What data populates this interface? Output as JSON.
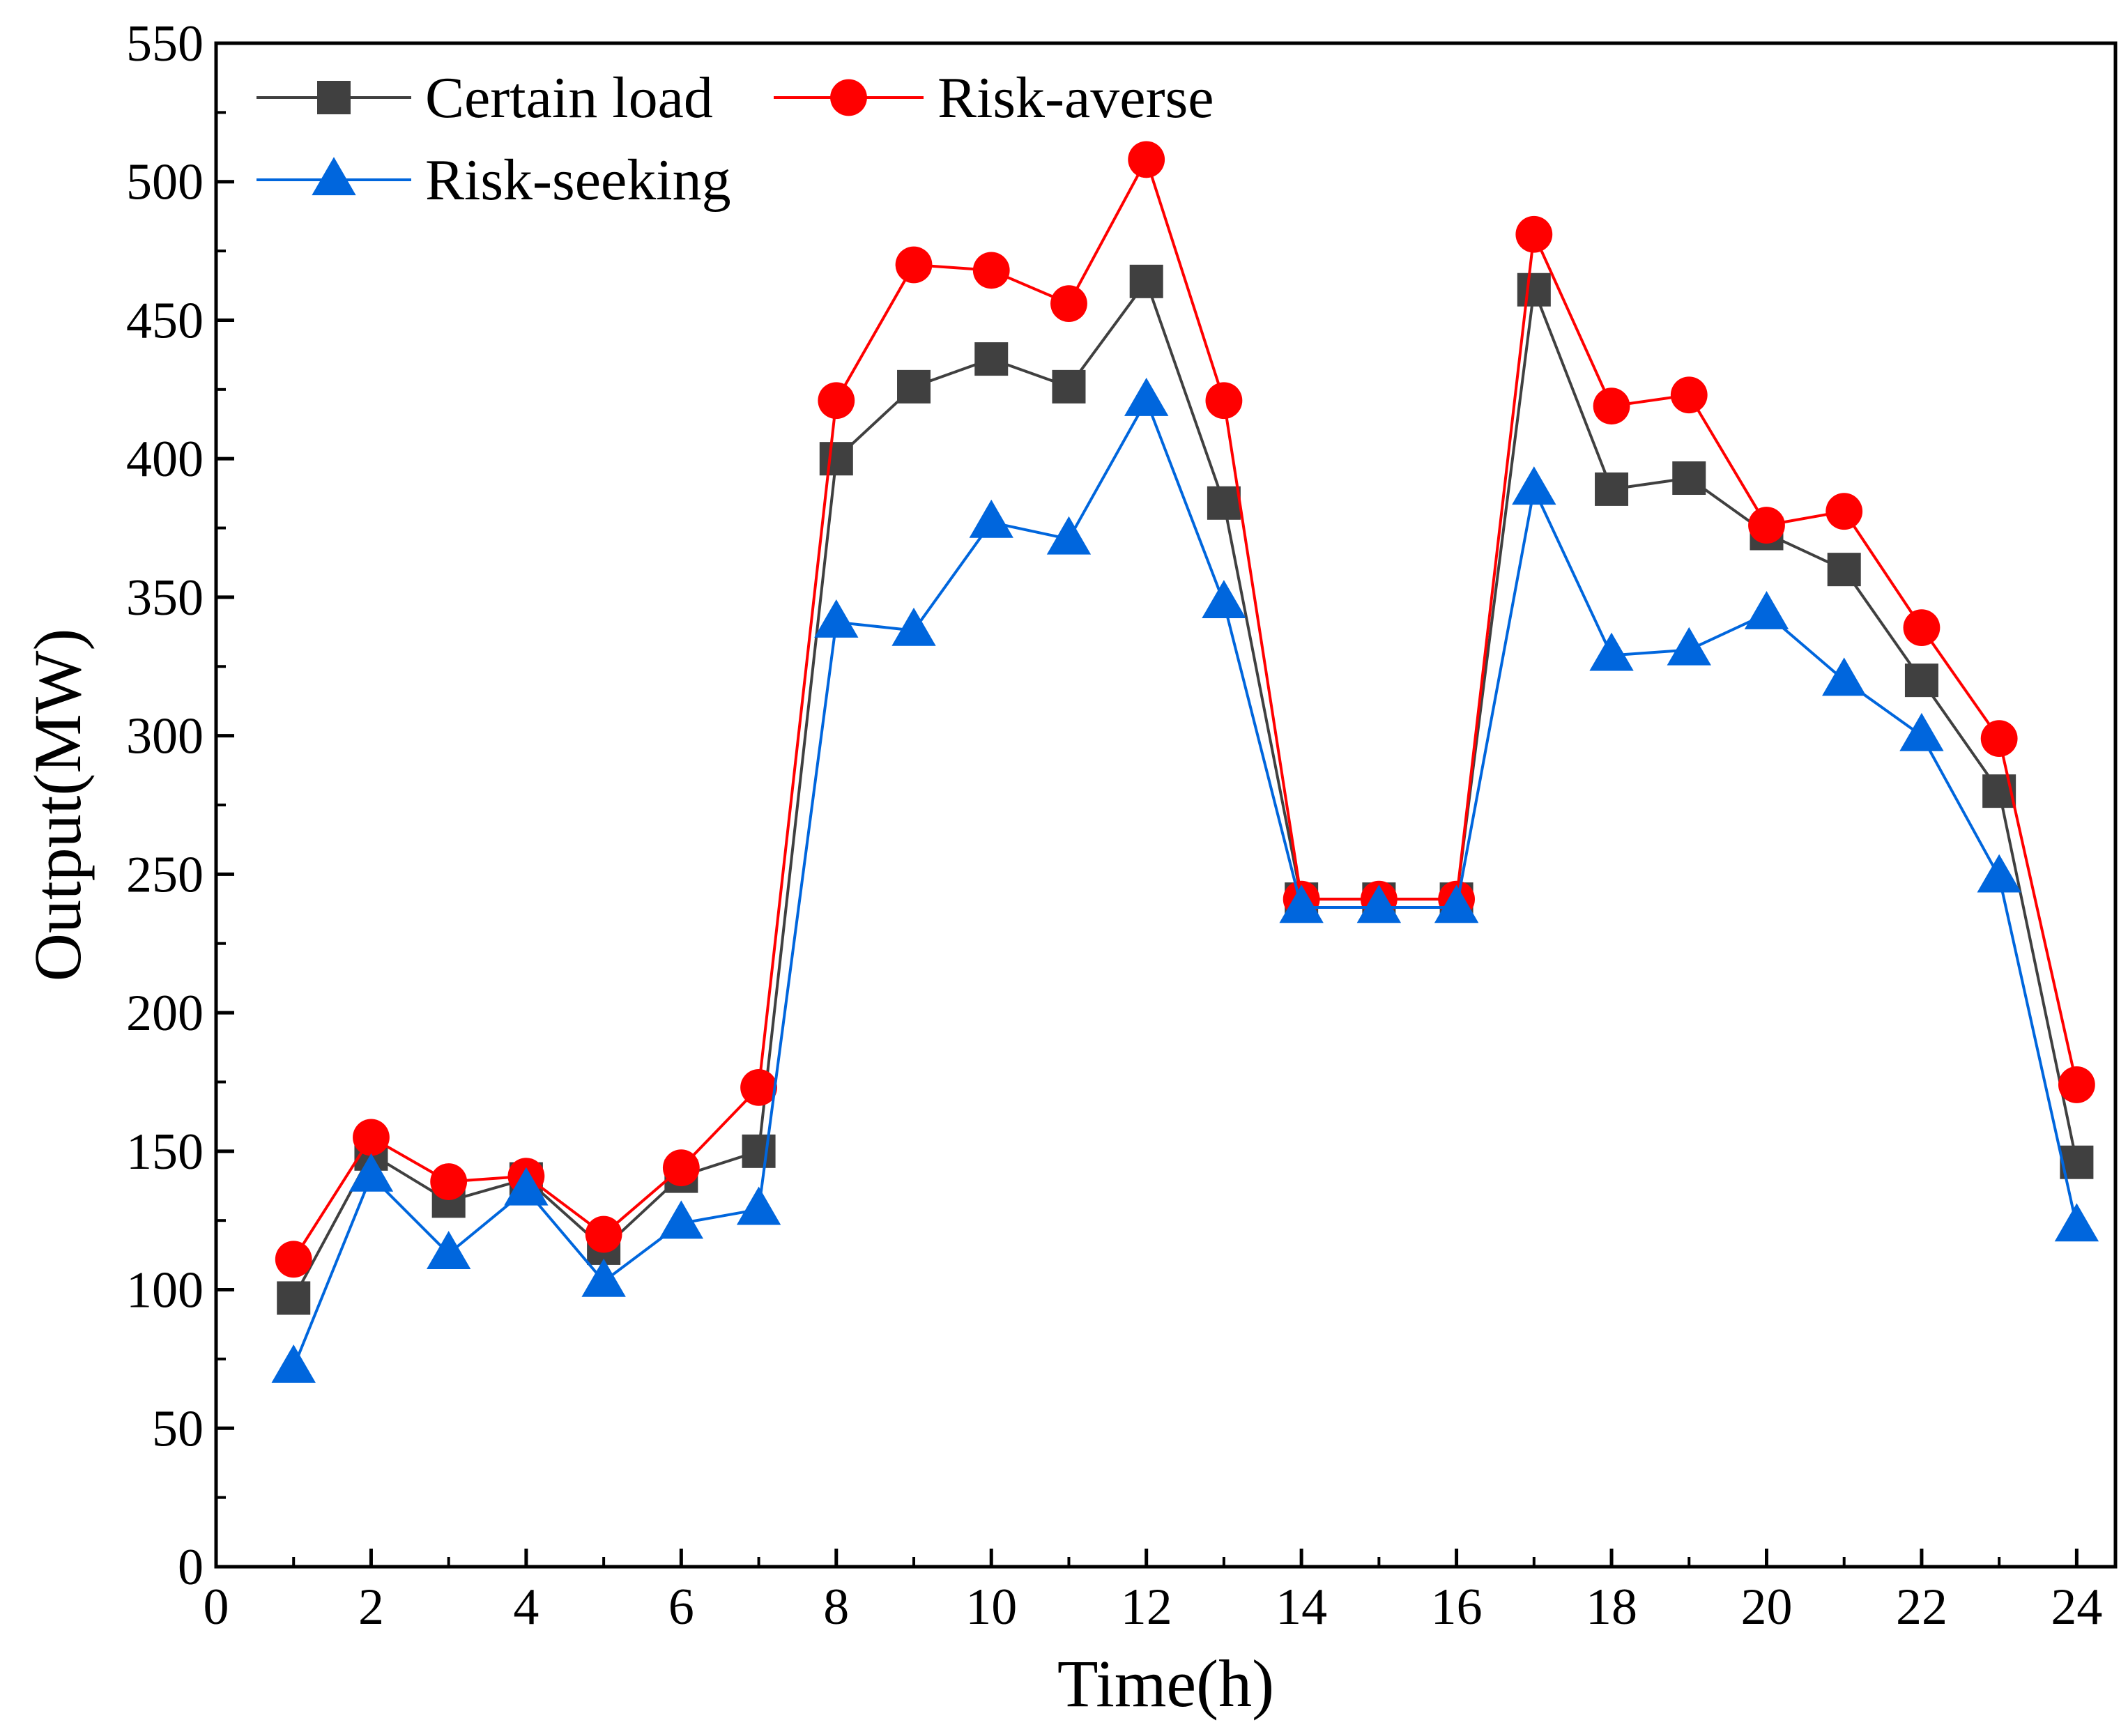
{
  "chart_data": {
    "type": "line",
    "xlabel": "Time(h)",
    "ylabel": "Output(MW)",
    "xlim": [
      0,
      24.5
    ],
    "ylim": [
      0,
      550
    ],
    "xticks": [
      0,
      2,
      4,
      6,
      8,
      10,
      12,
      14,
      16,
      18,
      20,
      22,
      24
    ],
    "yticks": [
      0,
      50,
      100,
      150,
      200,
      250,
      300,
      350,
      400,
      450,
      500,
      550
    ],
    "x": [
      1,
      2,
      3,
      4,
      5,
      6,
      7,
      8,
      9,
      10,
      11,
      12,
      13,
      14,
      15,
      16,
      17,
      18,
      19,
      20,
      21,
      22,
      23,
      24
    ],
    "series": [
      {
        "name": "Certain load",
        "color": "#404040",
        "marker": "square",
        "values": [
          97,
          149,
          132,
          140,
          115,
          141,
          150,
          400,
          426,
          436,
          426,
          464,
          384,
          241,
          241,
          241,
          461,
          389,
          393,
          373,
          360,
          320,
          280,
          146
        ]
      },
      {
        "name": "Risk-averse",
        "color": "#ff0000",
        "marker": "circle",
        "values": [
          111,
          155,
          139,
          141,
          120,
          144,
          173,
          421,
          470,
          468,
          456,
          508,
          421,
          241,
          241,
          241,
          481,
          419,
          423,
          376,
          381,
          339,
          299,
          174
        ]
      },
      {
        "name": "Risk-seeking",
        "color": "#0066dd",
        "marker": "triangle",
        "values": [
          72,
          141,
          113,
          136,
          103,
          124,
          129,
          341,
          338,
          377,
          371,
          421,
          348,
          238,
          238,
          238,
          389,
          329,
          331,
          344,
          320,
          300,
          249,
          123
        ]
      }
    ],
    "legend_position": "top-left"
  }
}
